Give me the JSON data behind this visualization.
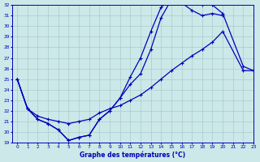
{
  "xlabel": "Graphe des températures (°C)",
  "xlim": [
    -0.5,
    23
  ],
  "ylim": [
    19,
    32
  ],
  "yticks": [
    19,
    20,
    21,
    22,
    23,
    24,
    25,
    26,
    27,
    28,
    29,
    30,
    31,
    32
  ],
  "xticks": [
    0,
    1,
    2,
    3,
    4,
    5,
    6,
    7,
    8,
    9,
    10,
    11,
    12,
    13,
    14,
    15,
    16,
    17,
    18,
    19,
    20,
    21,
    22,
    23
  ],
  "bg_color": "#cce8e8",
  "line_color": "#0000bb",
  "grid_color": "#aacccc",
  "curves": [
    {
      "x": [
        0,
        1,
        2,
        3,
        4,
        5,
        6,
        7,
        8,
        9,
        10,
        11,
        12,
        13,
        14,
        15,
        16,
        17,
        18,
        19,
        20,
        22,
        23
      ],
      "y": [
        25.0,
        22.2,
        21.2,
        20.8,
        20.2,
        19.2,
        19.5,
        19.7,
        21.2,
        22.0,
        23.2,
        24.5,
        25.5,
        27.8,
        30.8,
        32.5,
        32.5,
        32.2,
        32.0,
        32.0,
        31.2,
        26.2,
        25.8
      ]
    },
    {
      "x": [
        0,
        1,
        2,
        3,
        4,
        5,
        6,
        7,
        8,
        9,
        10,
        11,
        12,
        13,
        14,
        15,
        16,
        17,
        18,
        19,
        20
      ],
      "y": [
        25.0,
        22.2,
        21.2,
        20.8,
        20.2,
        19.2,
        19.5,
        19.7,
        21.2,
        22.0,
        23.2,
        25.2,
        27.0,
        29.5,
        31.8,
        32.5,
        32.2,
        31.5,
        31.0,
        31.2,
        31.0
      ]
    },
    {
      "x": [
        0,
        1,
        2,
        3,
        4,
        5,
        6,
        7,
        8,
        9,
        10,
        11,
        12,
        13,
        14,
        15,
        16,
        17,
        18,
        19,
        20,
        22,
        23
      ],
      "y": [
        25.0,
        22.2,
        21.5,
        21.2,
        21.0,
        20.8,
        21.0,
        21.2,
        21.8,
        22.2,
        22.5,
        23.0,
        23.5,
        24.2,
        25.0,
        25.8,
        26.5,
        27.2,
        27.8,
        28.5,
        29.5,
        25.8,
        25.8
      ]
    }
  ]
}
